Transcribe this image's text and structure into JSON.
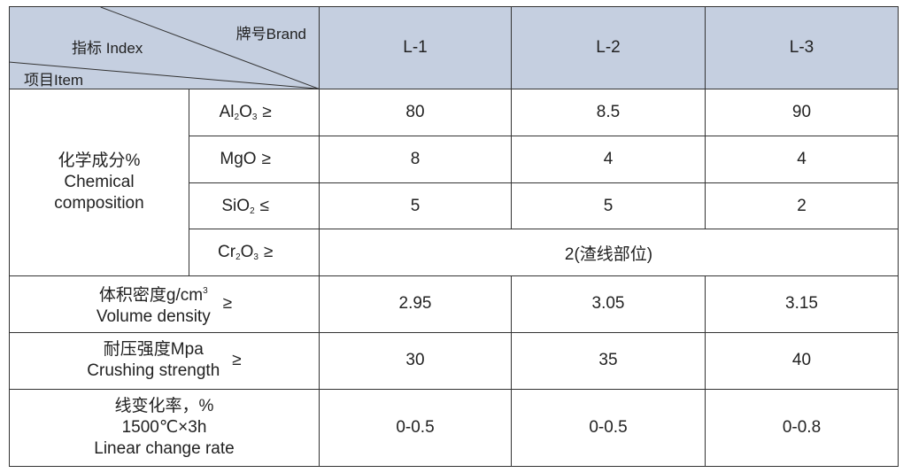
{
  "header": {
    "index_label": "指标 Index",
    "brand_label": "牌号Brand",
    "item_label": "项目Item",
    "brands": [
      "L-1",
      "L-2",
      "L-3"
    ]
  },
  "chemical": {
    "label_cn": "化学成分%",
    "label_en_1": "Chemical",
    "label_en_2": "composition",
    "rows": [
      {
        "comp_main": "Al",
        "sub1": "2",
        "comp_mid": "O",
        "sub2": "3",
        "sign": "≥",
        "values": [
          "80",
          "8.5",
          "90"
        ]
      },
      {
        "comp_main": "MgO",
        "sub1": "",
        "comp_mid": "",
        "sub2": "",
        "sign": "≥",
        "values": [
          "8",
          "4",
          "4"
        ]
      },
      {
        "comp_main": "SiO",
        "sub1": "2",
        "comp_mid": "",
        "sub2": "",
        "sign": "≤",
        "values": [
          "5",
          "5",
          "2"
        ]
      }
    ],
    "cr": {
      "comp_main": "Cr",
      "sub1": "2",
      "comp_mid": "O",
      "sub2": "3",
      "sign": "≥",
      "value": "2(渣线部位)"
    }
  },
  "volume_density": {
    "label_cn": "体积密度g/cm",
    "sup": "3",
    "label_en": "Volume density",
    "sign": "≥",
    "values": [
      "2.95",
      "3.05",
      "3.15"
    ]
  },
  "crushing_strength": {
    "label_cn": "耐压强度Mpa",
    "label_en": "Crushing strength",
    "sign": "≥",
    "values": [
      "30",
      "35",
      "40"
    ]
  },
  "linear_change": {
    "label_cn": "线变化率，%",
    "label_cond": "1500℃×3h",
    "label_en": "Linear change rate",
    "values": [
      "0-0.5",
      "0-0.5",
      "0-0.8"
    ]
  }
}
